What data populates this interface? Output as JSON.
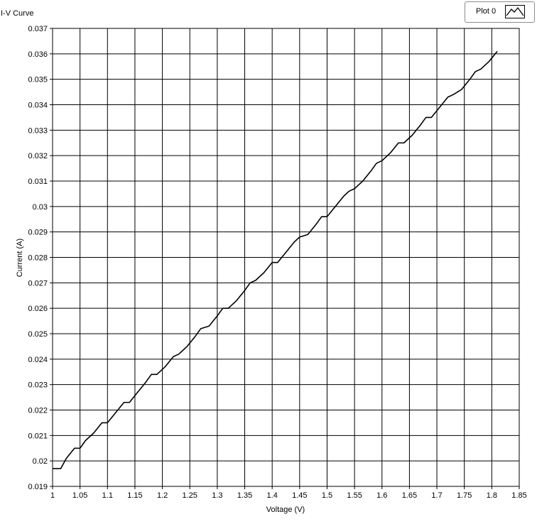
{
  "chart_data": {
    "type": "line",
    "title": "I-V Curve",
    "xlabel": "Voltage (V)",
    "ylabel": "Current (A)",
    "xlim": [
      1,
      1.85
    ],
    "ylim": [
      0.019,
      0.037
    ],
    "xticks": [
      "1",
      "1.05",
      "1.1",
      "1.15",
      "1.2",
      "1.25",
      "1.3",
      "1.35",
      "1.4",
      "1.45",
      "1.5",
      "1.55",
      "1.6",
      "1.65",
      "1.7",
      "1.75",
      "1.8",
      "1.85"
    ],
    "yticks": [
      "0.019",
      "0.02",
      "0.021",
      "0.022",
      "0.023",
      "0.024",
      "0.025",
      "0.026",
      "0.027",
      "0.028",
      "0.029",
      "0.03",
      "0.031",
      "0.032",
      "0.033",
      "0.034",
      "0.035",
      "0.036",
      "0.037"
    ],
    "grid": true,
    "legend_position": "top-right",
    "series": [
      {
        "name": "Plot 0",
        "color": "#000000",
        "x": [
          1.0,
          1.015,
          1.025,
          1.04,
          1.05,
          1.06,
          1.075,
          1.09,
          1.1,
          1.115,
          1.13,
          1.14,
          1.155,
          1.17,
          1.18,
          1.19,
          1.205,
          1.22,
          1.23,
          1.245,
          1.26,
          1.27,
          1.285,
          1.3,
          1.31,
          1.32,
          1.335,
          1.35,
          1.36,
          1.37,
          1.385,
          1.4,
          1.41,
          1.425,
          1.44,
          1.45,
          1.465,
          1.48,
          1.49,
          1.5,
          1.515,
          1.53,
          1.54,
          1.55,
          1.565,
          1.58,
          1.59,
          1.6,
          1.615,
          1.63,
          1.64,
          1.655,
          1.67,
          1.68,
          1.69,
          1.705,
          1.72,
          1.73,
          1.745,
          1.76,
          1.77,
          1.78,
          1.795,
          1.81
        ],
        "y": [
          0.0197,
          0.0197,
          0.0201,
          0.0205,
          0.0205,
          0.0208,
          0.0211,
          0.0215,
          0.0215,
          0.0219,
          0.0223,
          0.0223,
          0.0227,
          0.0231,
          0.0234,
          0.0234,
          0.0237,
          0.0241,
          0.0242,
          0.0245,
          0.0249,
          0.0252,
          0.0253,
          0.0257,
          0.026,
          0.026,
          0.0263,
          0.0267,
          0.027,
          0.0271,
          0.0274,
          0.0278,
          0.0278,
          0.0282,
          0.0286,
          0.0288,
          0.0289,
          0.0293,
          0.0296,
          0.0296,
          0.03,
          0.0304,
          0.0306,
          0.0307,
          0.031,
          0.0314,
          0.0317,
          0.0318,
          0.0321,
          0.0325,
          0.0325,
          0.0328,
          0.0332,
          0.0335,
          0.0335,
          0.0339,
          0.0343,
          0.0344,
          0.0346,
          0.035,
          0.0353,
          0.0354,
          0.0357,
          0.0361
        ]
      }
    ]
  }
}
